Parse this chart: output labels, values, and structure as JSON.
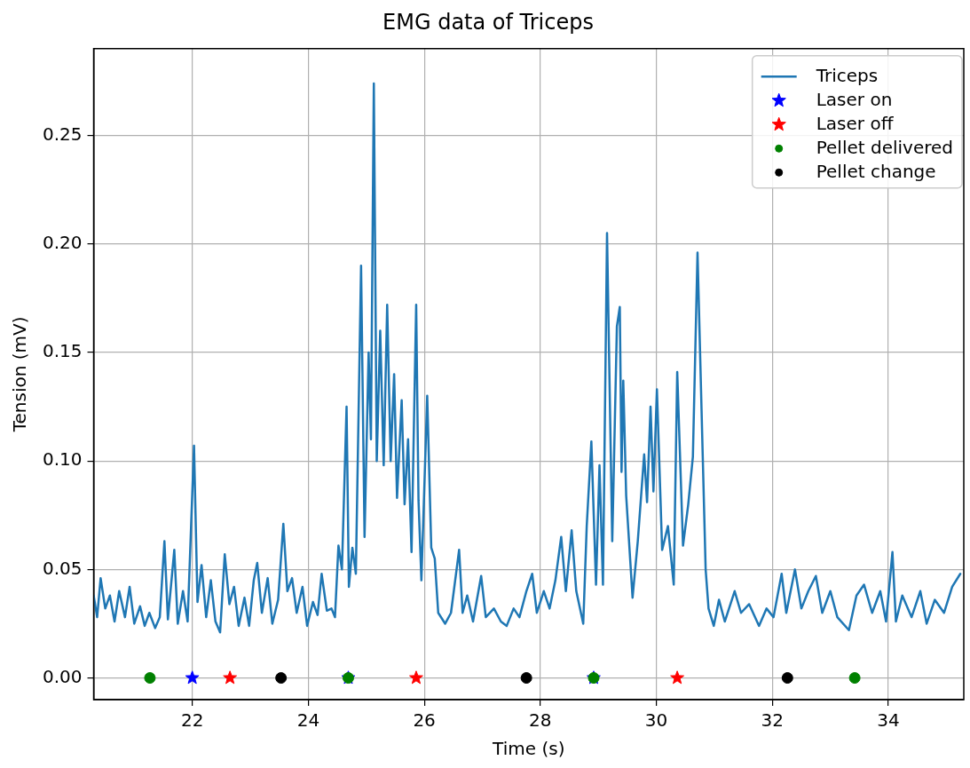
{
  "chart_data": {
    "type": "line",
    "title": "EMG data of Triceps",
    "xlabel": "Time (s)",
    "ylabel": "Tension (mV)",
    "xlim": [
      20.3,
      35.3
    ],
    "xticks": [
      22,
      24,
      26,
      28,
      30,
      32,
      34
    ],
    "ylim": [
      -0.01,
      0.29
    ],
    "yticks": [
      {
        "value": 0,
        "label": "0.00"
      },
      0.05,
      {
        "value": 0.1,
        "label": "0.10"
      },
      0.15,
      {
        "value": 0.2,
        "label": "0.20"
      },
      0.25
    ],
    "grid": true,
    "legend": "top right",
    "series": [
      {
        "name": "Triceps",
        "type": "line",
        "color": "#1f77b4",
        "marker": "none",
        "line_style": "solid",
        "x": [
          20.3,
          20.36,
          20.42,
          20.5,
          20.58,
          20.66,
          20.74,
          20.84,
          20.92,
          21.0,
          21.1,
          21.18,
          21.26,
          21.36,
          21.44,
          21.52,
          21.58,
          21.69,
          21.75,
          21.84,
          21.92,
          22.03,
          22.09,
          22.16,
          22.24,
          22.32,
          22.4,
          22.48,
          22.56,
          22.64,
          22.72,
          22.8,
          22.9,
          22.98,
          23.06,
          23.12,
          23.2,
          23.3,
          23.38,
          23.48,
          23.57,
          23.64,
          23.72,
          23.8,
          23.9,
          23.98,
          24.08,
          24.16,
          24.23,
          24.32,
          24.4,
          24.46,
          24.52,
          24.58,
          24.66,
          24.7,
          24.76,
          24.82,
          24.91,
          24.97,
          25.04,
          25.08,
          25.13,
          25.18,
          25.24,
          25.3,
          25.36,
          25.42,
          25.48,
          25.53,
          25.61,
          25.66,
          25.72,
          25.78,
          25.86,
          25.9,
          25.95,
          26.05,
          26.12,
          26.18,
          26.24,
          26.36,
          26.46,
          26.6,
          26.66,
          26.74,
          26.84,
          26.98,
          27.06,
          27.2,
          27.32,
          27.42,
          27.54,
          27.64,
          27.76,
          27.86,
          27.94,
          28.06,
          28.16,
          28.26,
          28.36,
          28.44,
          28.54,
          28.62,
          28.74,
          28.8,
          28.88,
          28.96,
          29.02,
          29.08,
          29.15,
          29.24,
          29.32,
          29.37,
          29.4,
          29.43,
          29.48,
          29.59,
          29.68,
          29.79,
          29.84,
          29.9,
          29.95,
          30.01,
          30.1,
          30.2,
          30.3,
          30.36,
          30.46,
          30.55,
          30.63,
          30.71,
          30.8,
          30.85,
          30.9,
          30.99,
          31.08,
          31.18,
          31.35,
          31.46,
          31.6,
          31.77,
          31.9,
          32.02,
          32.16,
          32.24,
          32.39,
          32.5,
          32.62,
          32.75,
          32.86,
          33.0,
          33.12,
          33.32,
          33.45,
          33.58,
          33.72,
          33.86,
          33.96,
          34.07,
          34.13,
          34.24,
          34.4,
          34.55,
          34.66,
          34.8,
          34.96,
          35.1,
          35.24
        ],
        "values": [
          0.038,
          0.028,
          0.046,
          0.032,
          0.038,
          0.026,
          0.04,
          0.028,
          0.042,
          0.025,
          0.033,
          0.024,
          0.03,
          0.023,
          0.028,
          0.063,
          0.027,
          0.059,
          0.025,
          0.04,
          0.026,
          0.107,
          0.035,
          0.052,
          0.028,
          0.045,
          0.026,
          0.021,
          0.057,
          0.034,
          0.042,
          0.024,
          0.037,
          0.024,
          0.045,
          0.053,
          0.03,
          0.046,
          0.025,
          0.036,
          0.071,
          0.04,
          0.046,
          0.03,
          0.042,
          0.024,
          0.035,
          0.029,
          0.048,
          0.031,
          0.032,
          0.028,
          0.061,
          0.05,
          0.125,
          0.042,
          0.06,
          0.048,
          0.19,
          0.065,
          0.15,
          0.11,
          0.274,
          0.1,
          0.16,
          0.098,
          0.172,
          0.1,
          0.14,
          0.083,
          0.128,
          0.08,
          0.11,
          0.058,
          0.172,
          0.082,
          0.045,
          0.13,
          0.06,
          0.055,
          0.03,
          0.025,
          0.03,
          0.059,
          0.03,
          0.038,
          0.026,
          0.047,
          0.028,
          0.032,
          0.026,
          0.024,
          0.032,
          0.028,
          0.04,
          0.048,
          0.03,
          0.04,
          0.032,
          0.045,
          0.065,
          0.04,
          0.068,
          0.04,
          0.025,
          0.07,
          0.109,
          0.043,
          0.098,
          0.043,
          0.205,
          0.063,
          0.162,
          0.171,
          0.095,
          0.137,
          0.084,
          0.037,
          0.063,
          0.103,
          0.081,
          0.125,
          0.086,
          0.133,
          0.059,
          0.07,
          0.043,
          0.141,
          0.061,
          0.08,
          0.102,
          0.196,
          0.102,
          0.05,
          0.032,
          0.024,
          0.036,
          0.026,
          0.04,
          0.03,
          0.034,
          0.024,
          0.032,
          0.028,
          0.048,
          0.03,
          0.05,
          0.032,
          0.04,
          0.047,
          0.03,
          0.04,
          0.028,
          0.022,
          0.038,
          0.043,
          0.03,
          0.04,
          0.026,
          0.058,
          0.026,
          0.038,
          0.028,
          0.04,
          0.025,
          0.036,
          0.03,
          0.042,
          0.048
        ]
      },
      {
        "name": "Laser on",
        "type": "scatter",
        "color": "#0000ff",
        "marker": "star",
        "x": [
          22.0,
          24.69,
          28.92
        ],
        "values": [
          0,
          0,
          0
        ]
      },
      {
        "name": "Laser off",
        "type": "scatter",
        "color": "#ff0000",
        "marker": "star",
        "x": [
          22.65,
          25.86,
          30.36
        ],
        "values": [
          0,
          0,
          0
        ]
      },
      {
        "name": "Pellet delivered",
        "type": "scatter",
        "color": "#008000",
        "marker": "circle",
        "x": [
          21.27,
          24.69,
          28.92,
          33.42
        ],
        "values": [
          0,
          0,
          0,
          0
        ]
      },
      {
        "name": "Pellet change",
        "type": "scatter",
        "color": "#000000",
        "marker": "circle",
        "x": [
          23.53,
          27.76,
          32.26
        ],
        "values": [
          0,
          0,
          0
        ]
      }
    ]
  }
}
